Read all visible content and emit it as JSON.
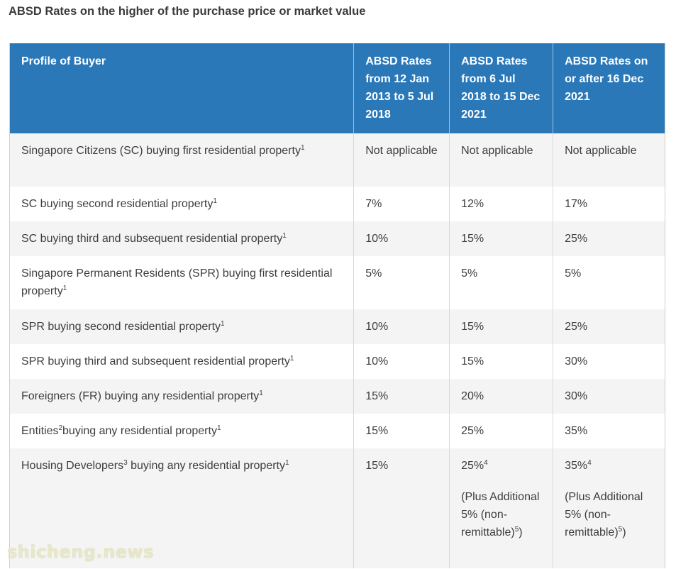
{
  "title": "ABSD Rates on the higher of the purchase price or market value",
  "table": {
    "headers": [
      "Profile of Buyer",
      "ABSD Rates from 12 Jan 2013 to 5 Jul 2018",
      "ABSD Rates from 6 Jul 2018 to 15 Dec 2021",
      "ABSD Rates on or after 16 Dec 2021"
    ],
    "rows": [
      {
        "profile": "Singapore Citizens (SC) buying first residential property",
        "profile_sup": "1",
        "rate_2013": "Not applicable",
        "rate_2018": "Not applicable",
        "rate_2021": "Not applicable"
      },
      {
        "profile": "SC buying second residential property",
        "profile_sup": "1",
        "rate_2013": "7%",
        "rate_2018": "12%",
        "rate_2021": "17%"
      },
      {
        "profile": "SC buying third and subsequent residential property",
        "profile_sup": "1",
        "rate_2013": "10%",
        "rate_2018": "15%",
        "rate_2021": "25%"
      },
      {
        "profile": "Singapore Permanent Residents (SPR) buying first residential property",
        "profile_sup": "1",
        "rate_2013": "5%",
        "rate_2018": "5%",
        "rate_2021": "5%"
      },
      {
        "profile": "SPR buying second residential property",
        "profile_sup": "1",
        "rate_2013": "10%",
        "rate_2018": "15%",
        "rate_2021": "25%"
      },
      {
        "profile": "SPR buying third and subsequent residential property",
        "profile_sup": "1",
        "rate_2013": "10%",
        "rate_2018": "15%",
        "rate_2021": "30%"
      },
      {
        "profile": "Foreigners (FR) buying any residential property",
        "profile_sup": "1",
        "rate_2013": "15%",
        "rate_2018": "20%",
        "rate_2021": "30%"
      },
      {
        "profile_a": "Entities",
        "profile_a_sup": "2",
        "profile_b": "buying any residential property",
        "profile_sup": "1",
        "rate_2013": "15%",
        "rate_2018": "25%",
        "rate_2021": "35%"
      },
      {
        "profile_a": "Housing Developers",
        "profile_a_sup": "3",
        "profile_b": " buying any residential property",
        "profile_sup": "1",
        "rate_2013": "15%",
        "rate_2018": "25%",
        "rate_2018_sup": "4",
        "rate_2018_note": "(Plus Additional 5% (non-remittable)",
        "rate_2018_note_sup": "5",
        "rate_2018_note_end": ")",
        "rate_2021": "35%",
        "rate_2021_sup": "4",
        "rate_2021_note": "(Plus Additional 5% (non-remittable)",
        "rate_2021_note_sup": "5",
        "rate_2021_note_end": ")"
      }
    ]
  },
  "watermark": "shicheng.news"
}
